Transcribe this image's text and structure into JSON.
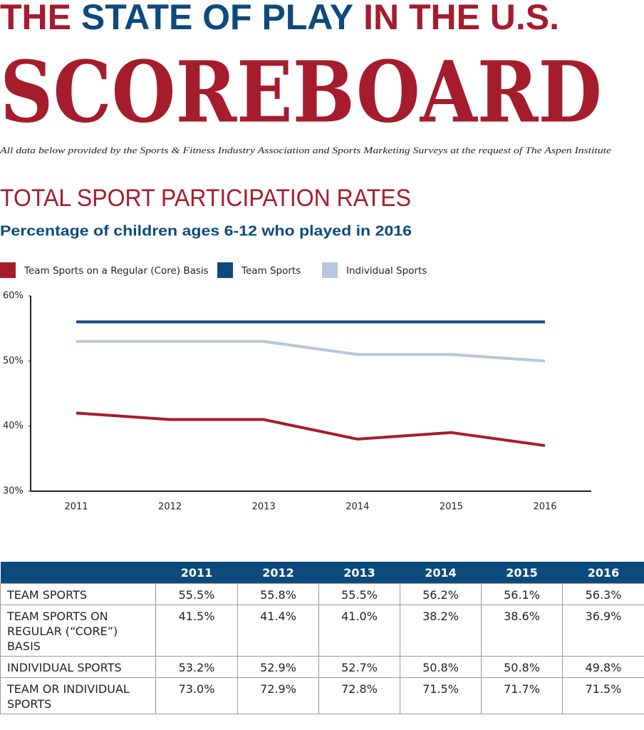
{
  "header": {
    "title": [
      "THE",
      "STATE OF PLAY",
      "IN THE U.S."
    ],
    "title_colors": [
      "#a51c2d",
      "#0d4a7c",
      "#a51c2d"
    ],
    "main": "SCOREBOARD",
    "note": "All data below provided by the Sports & Fitness Industry Association and Sports Marketing Surveys at the request of The Aspen Institute"
  },
  "chart_data": {
    "type": "line",
    "title": "TOTAL SPORT PARTICIPATION RATES",
    "subtitle": "Percentage of children ages 6-12 who played in 2016",
    "categories": [
      "2011",
      "2012",
      "2013",
      "2014",
      "2015",
      "2016"
    ],
    "series": [
      {
        "name": "Team Sports on a Regular (Core) Basis",
        "color": "#a51c2d",
        "values": [
          42,
          41,
          41,
          38,
          39,
          37
        ]
      },
      {
        "name": "Team Sports",
        "color": "#0d4a7c",
        "values": [
          56,
          56,
          56,
          56,
          56,
          56
        ]
      },
      {
        "name": "Individual Sports",
        "color": "#b8c6dd",
        "values": [
          53,
          53,
          53,
          51,
          51,
          50
        ]
      }
    ],
    "ylim": [
      30,
      60
    ],
    "yticks": [
      {
        "value": 30,
        "label": "30%"
      },
      {
        "value": 40,
        "label": "40%"
      },
      {
        "value": 50,
        "label": "50%"
      },
      {
        "value": 60,
        "label": "60%"
      }
    ],
    "grid": false,
    "legend": "top"
  },
  "table": {
    "columns": [
      "2011",
      "2012",
      "2013",
      "2014",
      "2015",
      "2016"
    ],
    "rows": [
      [
        "TEAM SPORTS",
        "55.5%",
        "55.8%",
        "55.5%",
        "56.2%",
        "56.1%",
        "56.3%"
      ],
      [
        "TEAM SPORTS ON REGULAR (“CORE”) BASIS",
        "41.5%",
        "41.4%",
        "41.0%",
        "38.2%",
        "38.6%",
        "36.9%"
      ],
      [
        "INDIVIDUAL SPORTS",
        "53.2%",
        "52.9%",
        "52.7%",
        "50.8%",
        "50.8%",
        "49.8%"
      ],
      [
        "TEAM OR INDIVIDUAL SPORTS",
        "73.0%",
        "72.9%",
        "72.8%",
        "71.5%",
        "71.7%",
        "71.5%"
      ]
    ]
  }
}
